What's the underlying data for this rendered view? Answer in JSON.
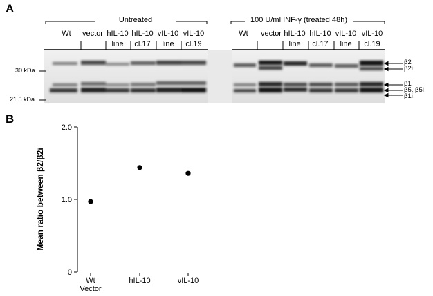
{
  "panel_a": {
    "letter": "A",
    "groups": [
      {
        "label": "Untreated"
      },
      {
        "label": "100 U/ml INF-γ (treated 48h)"
      }
    ],
    "lanes_untreated": [
      {
        "line1": "Wt",
        "line2": ""
      },
      {
        "line1": "vector",
        "line2": ""
      },
      {
        "line1": "hIL-10",
        "line2": "line"
      },
      {
        "line1": "hIL-10",
        "line2": "cl.17"
      },
      {
        "line1": "vIL-10",
        "line2": "line"
      },
      {
        "line1": "vIL-10",
        "line2": "cl.19"
      }
    ],
    "lanes_treated": [
      {
        "line1": "Wt",
        "line2": ""
      },
      {
        "line1": "vector",
        "line2": ""
      },
      {
        "line1": "hIL-10",
        "line2": "line"
      },
      {
        "line1": "hIL-10",
        "line2": "cl.17"
      },
      {
        "line1": "vIL-10",
        "line2": "line"
      },
      {
        "line1": "vIL-10",
        "line2": "cl.19"
      }
    ],
    "markers": [
      {
        "label": "30 kDa"
      },
      {
        "label": "21.5 kDa"
      }
    ],
    "bands": [
      {
        "label": "β2"
      },
      {
        "label": "β2i"
      },
      {
        "label": "β1"
      },
      {
        "label": "β5, β5i"
      },
      {
        "label": "β1i"
      }
    ]
  },
  "panel_b": {
    "letter": "B",
    "chart_data": {
      "type": "scatter",
      "categories": [
        "Wt\nVector",
        "hIL-10",
        "vIL-10"
      ],
      "series": [
        {
          "values": [
            0.97,
            1.44,
            1.36
          ]
        }
      ],
      "title": "",
      "xlabel": "",
      "ylabel": "Mean ratio between β2/β2i",
      "ylim": [
        0,
        2.0
      ],
      "yticks": [
        "0",
        "1.0",
        "2.0"
      ],
      "grid": false,
      "marker_color": "#000000"
    }
  }
}
